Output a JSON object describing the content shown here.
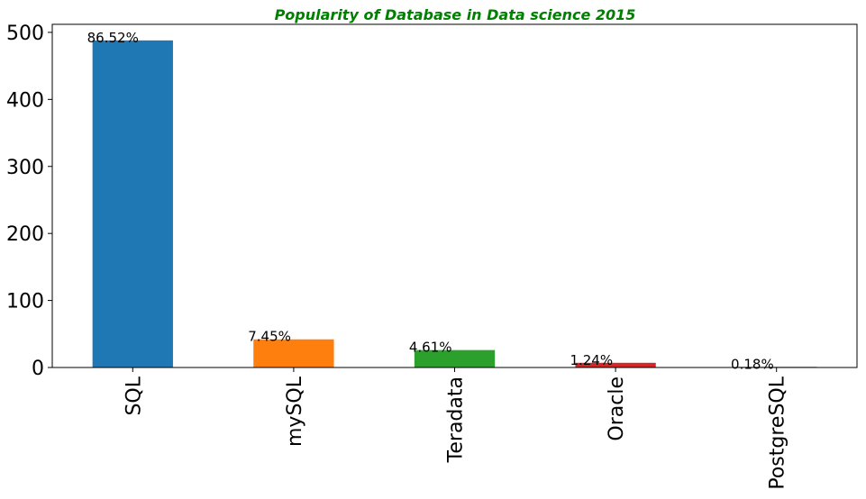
{
  "chart_data": {
    "type": "bar",
    "title": "Popularity of Database in Data science 2015",
    "title_color": "#008000",
    "categories": [
      "SQL",
      "mySQL",
      "Teradata",
      "Oracle",
      "PostgreSQL"
    ],
    "values": [
      488,
      42,
      26,
      7,
      1
    ],
    "data_labels": [
      "86.52%",
      "7.45%",
      "4.61%",
      "1.24%",
      "0.18%"
    ],
    "colors": [
      "#1f77b4",
      "#ff7f0e",
      "#2ca02c",
      "#d62728",
      "#9467bd"
    ],
    "yticks": [
      "0",
      "100",
      "200",
      "300",
      "400",
      "500"
    ],
    "ylim": [
      0,
      512
    ],
    "xlabel": "",
    "ylabel": "",
    "grid": false
  }
}
